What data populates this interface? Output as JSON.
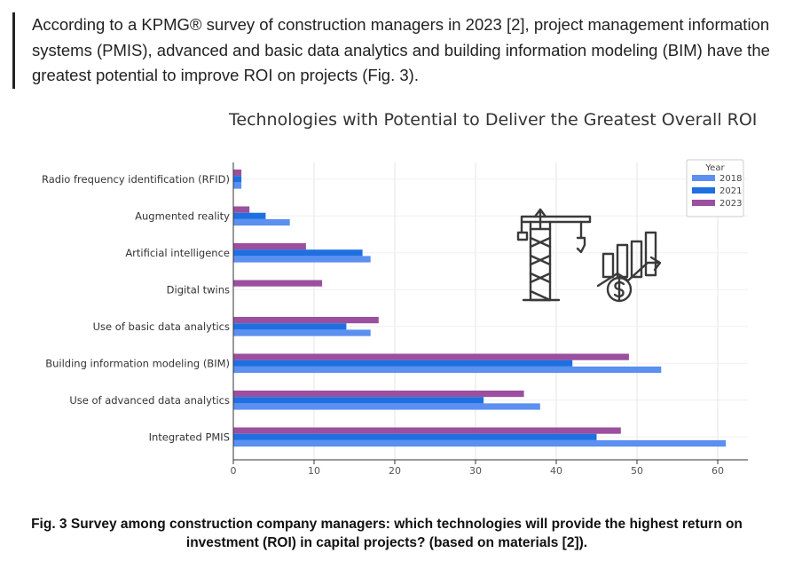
{
  "intro": {
    "text": "According to a KPMG® survey of construction managers in 2023 [2], project management information systems (PMIS), advanced and basic data analytics and building information modeling (BIM) have the greatest potential to improve ROI on projects (Fig. 3)."
  },
  "caption": {
    "text": "Fig. 3 Survey among construction company managers: which technologies will provide the highest return on investment (ROI) in capital projects? (based on materials [2])."
  },
  "chart_data": {
    "type": "bar",
    "orientation": "horizontal",
    "title": "Technologies with Potential to Deliver the Greatest Overall ROI",
    "xlabel": "",
    "ylabel": "",
    "categories": [
      "Radio frequency identification (RFID)",
      "Augmented reality",
      "Artificial intelligence",
      "Digital twins",
      "Use of basic data analytics",
      "Building information modeling (BIM)",
      "Use of advanced data analytics",
      "Integrated PMIS"
    ],
    "series": [
      {
        "name": "2018",
        "color": "#5b8ff0",
        "values": [
          1,
          7,
          17,
          0,
          17,
          53,
          38,
          61
        ]
      },
      {
        "name": "2021",
        "color": "#1f6fe0",
        "values": [
          1,
          4,
          16,
          0,
          14,
          42,
          31,
          45
        ]
      },
      {
        "name": "2023",
        "color": "#9b4f9e",
        "values": [
          1,
          2,
          9,
          11,
          18,
          49,
          36,
          48
        ]
      }
    ],
    "xlim": [
      0,
      63
    ],
    "xticks": [
      0,
      10,
      20,
      30,
      40,
      50,
      60
    ],
    "grid": true,
    "legend": {
      "title": "Year",
      "position": "top-right"
    },
    "icons": [
      "construction-crane-icon",
      "growth-chart-dollar-icon"
    ]
  }
}
